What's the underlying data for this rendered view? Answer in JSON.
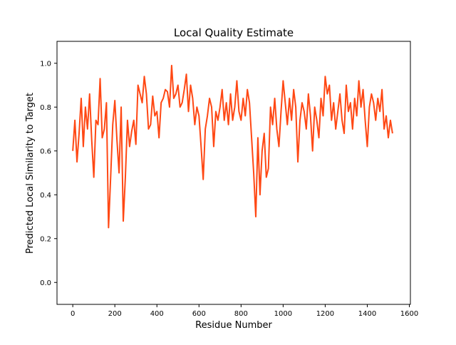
{
  "chart_data": {
    "type": "line",
    "title": "Local Quality Estimate",
    "xlabel": "Residue Number",
    "ylabel": "Predicted Local Similarity to Target",
    "xlim": [
      -75,
      1605
    ],
    "ylim": [
      -0.1,
      1.1
    ],
    "xticks": [
      0,
      200,
      400,
      600,
      800,
      1000,
      1200,
      1400,
      1600
    ],
    "yticks": [
      0.0,
      0.2,
      0.4,
      0.6,
      0.8,
      1.0
    ],
    "xtick_labels": [
      "0",
      "200",
      "400",
      "600",
      "800",
      "1000",
      "1200",
      "1400",
      "1600"
    ],
    "ytick_labels": [
      "0.0",
      "0.2",
      "0.4",
      "0.6",
      "0.8",
      "1.0"
    ],
    "grid": false,
    "series": [
      {
        "color": "#ff4814",
        "x": [
          0,
          10,
          20,
          30,
          40,
          50,
          60,
          70,
          80,
          90,
          100,
          110,
          120,
          130,
          140,
          150,
          160,
          170,
          180,
          190,
          200,
          210,
          220,
          230,
          240,
          250,
          260,
          270,
          280,
          290,
          300,
          310,
          320,
          330,
          340,
          350,
          360,
          370,
          380,
          390,
          400,
          410,
          420,
          430,
          440,
          450,
          460,
          470,
          480,
          490,
          500,
          510,
          520,
          530,
          540,
          550,
          560,
          570,
          580,
          590,
          600,
          610,
          620,
          630,
          640,
          650,
          660,
          670,
          680,
          690,
          700,
          710,
          720,
          730,
          740,
          750,
          760,
          770,
          780,
          790,
          800,
          810,
          820,
          830,
          840,
          850,
          860,
          870,
          880,
          890,
          900,
          910,
          920,
          930,
          940,
          950,
          960,
          970,
          980,
          990,
          1000,
          1010,
          1020,
          1030,
          1040,
          1050,
          1060,
          1070,
          1080,
          1090,
          1100,
          1110,
          1120,
          1130,
          1140,
          1150,
          1160,
          1170,
          1180,
          1190,
          1200,
          1210,
          1220,
          1230,
          1240,
          1250,
          1260,
          1270,
          1280,
          1290,
          1300,
          1310,
          1320,
          1330,
          1340,
          1350,
          1360,
          1370,
          1380,
          1390,
          1400,
          1410,
          1420,
          1430,
          1440,
          1450,
          1460,
          1470,
          1480,
          1490,
          1500,
          1510,
          1520
        ],
        "y": [
          0.6,
          0.74,
          0.55,
          0.68,
          0.84,
          0.62,
          0.8,
          0.7,
          0.86,
          0.65,
          0.48,
          0.74,
          0.72,
          0.93,
          0.66,
          0.7,
          0.82,
          0.25,
          0.48,
          0.72,
          0.83,
          0.65,
          0.5,
          0.8,
          0.28,
          0.48,
          0.74,
          0.62,
          0.69,
          0.74,
          0.63,
          0.9,
          0.86,
          0.82,
          0.94,
          0.86,
          0.7,
          0.72,
          0.85,
          0.76,
          0.78,
          0.66,
          0.82,
          0.84,
          0.88,
          0.87,
          0.8,
          0.99,
          0.84,
          0.86,
          0.9,
          0.8,
          0.82,
          0.88,
          0.95,
          0.78,
          0.9,
          0.84,
          0.72,
          0.8,
          0.76,
          0.62,
          0.47,
          0.7,
          0.76,
          0.84,
          0.8,
          0.62,
          0.78,
          0.74,
          0.8,
          0.88,
          0.74,
          0.82,
          0.72,
          0.86,
          0.74,
          0.8,
          0.92,
          0.78,
          0.74,
          0.84,
          0.76,
          0.88,
          0.82,
          0.66,
          0.5,
          0.3,
          0.66,
          0.4,
          0.6,
          0.68,
          0.48,
          0.52,
          0.8,
          0.72,
          0.84,
          0.7,
          0.62,
          0.78,
          0.92,
          0.82,
          0.72,
          0.84,
          0.74,
          0.88,
          0.8,
          0.55,
          0.74,
          0.82,
          0.78,
          0.7,
          0.86,
          0.76,
          0.6,
          0.8,
          0.74,
          0.66,
          0.84,
          0.76,
          0.94,
          0.86,
          0.9,
          0.74,
          0.82,
          0.7,
          0.78,
          0.86,
          0.74,
          0.68,
          0.9,
          0.78,
          0.82,
          0.7,
          0.84,
          0.76,
          0.92,
          0.8,
          0.88,
          0.74,
          0.62,
          0.8,
          0.86,
          0.82,
          0.74,
          0.84,
          0.78,
          0.88,
          0.7,
          0.76,
          0.66,
          0.74,
          0.68
        ]
      }
    ]
  }
}
